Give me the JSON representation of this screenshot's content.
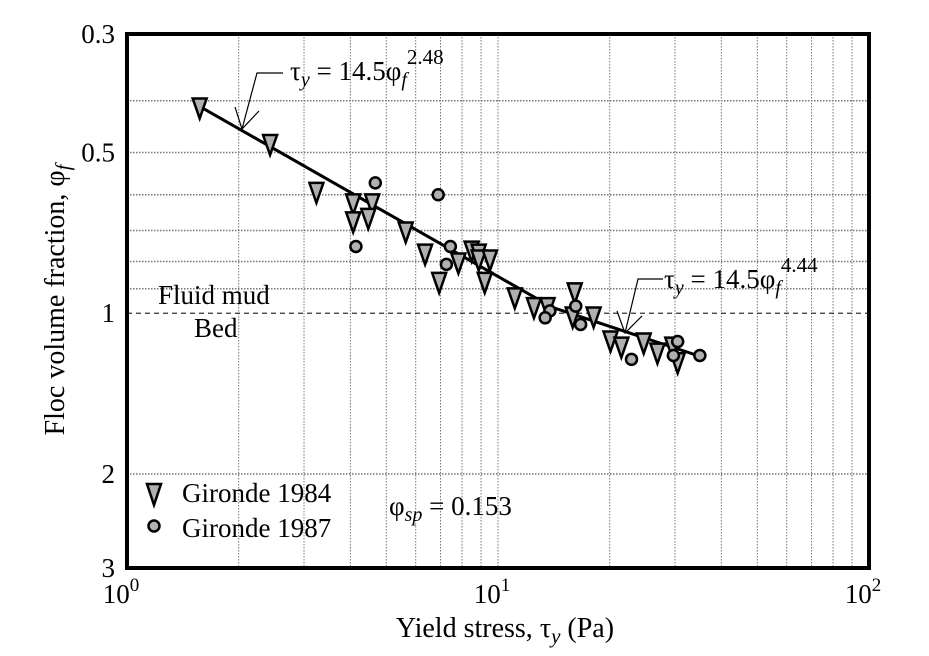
{
  "chart_data": {
    "type": "scatter",
    "title": "",
    "xlabel": "Yield stress, τy (Pa)",
    "xlabel_parts": {
      "pre": "Yield stress, ",
      "sym": "τ",
      "sub": "y",
      "post": " (Pa)"
    },
    "ylabel": "Floc volume fraction, φf",
    "ylabel_parts": {
      "pre": "Floc volume fraction, ",
      "sym": "φ",
      "sub": "f"
    },
    "x_scale": "log",
    "y_scale": "log",
    "y_inverted": true,
    "xlim": [
      1,
      100
    ],
    "ylim": [
      0.3,
      3
    ],
    "grid": true,
    "x_ticks": [
      {
        "value": 1,
        "base": "10",
        "exp": "0"
      },
      {
        "value": 10,
        "base": "10",
        "exp": "1"
      },
      {
        "value": 100,
        "base": "10",
        "exp": "2"
      }
    ],
    "y_ticks": [
      {
        "value": 0.3,
        "label": "0.3"
      },
      {
        "value": 0.5,
        "label": "0.5"
      },
      {
        "value": 1,
        "label": "1"
      },
      {
        "value": 2,
        "label": "2"
      },
      {
        "value": 3,
        "label": "3"
      }
    ],
    "y_grid": [
      0.4,
      0.5,
      0.6,
      0.7,
      0.8,
      0.9,
      2
    ],
    "boundary_line": {
      "y": 1,
      "style": "dashed",
      "label_above": "Fluid mud",
      "label_below": "Bed"
    },
    "series": [
      {
        "name": "Gironde 1984",
        "marker": "triangle-down",
        "color": "#b0b0b0",
        "points": [
          [
            1.57,
            0.41
          ],
          [
            2.43,
            0.48
          ],
          [
            3.24,
            0.59
          ],
          [
            4.07,
            0.62
          ],
          [
            4.58,
            0.62
          ],
          [
            4.07,
            0.67
          ],
          [
            4.47,
            0.66
          ],
          [
            5.64,
            0.7
          ],
          [
            6.36,
            0.77
          ],
          [
            7.82,
            0.8
          ],
          [
            6.94,
            0.87
          ],
          [
            8.49,
            0.76
          ],
          [
            8.87,
            0.77
          ],
          [
            8.87,
            0.79
          ],
          [
            9.51,
            0.79
          ],
          [
            9.21,
            0.87
          ],
          [
            11.1,
            0.93
          ],
          [
            12.5,
            0.97
          ],
          [
            13.6,
            0.97
          ],
          [
            16.1,
            0.91
          ],
          [
            15.9,
            1.01
          ],
          [
            18.1,
            1.01
          ],
          [
            20.1,
            1.12
          ],
          [
            21.5,
            1.15
          ],
          [
            24.7,
            1.13
          ],
          [
            26.9,
            1.18
          ],
          [
            29.5,
            1.15
          ],
          [
            30.5,
            1.23
          ]
        ]
      },
      {
        "name": "Gironde 1987",
        "marker": "circle",
        "color": "#b0b0b0",
        "points": [
          [
            4.67,
            0.57
          ],
          [
            6.9,
            0.6
          ],
          [
            4.14,
            0.75
          ],
          [
            7.44,
            0.75
          ],
          [
            7.26,
            0.81
          ],
          [
            16.2,
            0.97
          ],
          [
            13.8,
            0.99
          ],
          [
            13.4,
            1.02
          ],
          [
            16.7,
            1.05
          ],
          [
            22.9,
            1.22
          ],
          [
            30.5,
            1.13
          ],
          [
            29.7,
            1.2
          ],
          [
            35.0,
            1.2
          ]
        ]
      }
    ],
    "fit_lines": [
      {
        "label": {
          "sym": "τ",
          "sub": "y",
          "eq": " = 14.5φ",
          "sub2": "f",
          "exp": "2.48"
        },
        "points": [
          [
            1.57,
            0.41
          ],
          [
            14.0,
            0.975
          ]
        ]
      },
      {
        "label": {
          "sym": "τ",
          "sub": "y",
          "eq": " = 14.5φ",
          "sub2": "f",
          "exp": "4.44"
        },
        "points": [
          [
            14.0,
            0.975
          ],
          [
            34.5,
            1.2
          ]
        ]
      }
    ],
    "annotation": {
      "sym": "φ",
      "sub": "sp",
      "text": " = 0.153"
    }
  }
}
